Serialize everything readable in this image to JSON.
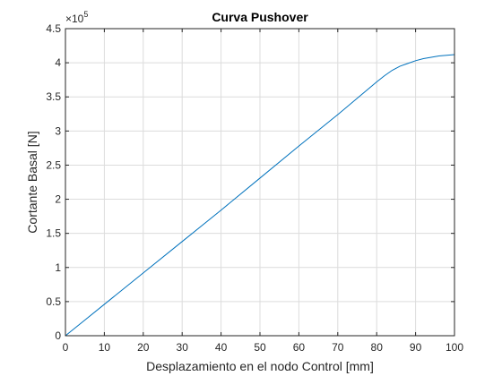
{
  "chart_data": {
    "type": "line",
    "title": "Curva Pushover",
    "xlabel": "Desplazamiento en el nodo Control [mm]",
    "ylabel": "Cortante Basal [N]",
    "xlim": [
      0,
      100
    ],
    "ylim": [
      0,
      4.5
    ],
    "y_scale_factor": "×10",
    "y_scale_exponent": "5",
    "x_ticks": [
      "0",
      "10",
      "20",
      "30",
      "40",
      "50",
      "60",
      "70",
      "80",
      "90",
      "100"
    ],
    "y_ticks": [
      "0",
      "0.5",
      "1",
      "1.5",
      "2",
      "2.5",
      "3",
      "3.5",
      "4",
      "4.5"
    ],
    "grid": true,
    "colors": {
      "line": "#0072BD",
      "grid": "#dcdcdc",
      "axis": "#262626"
    },
    "series": [
      {
        "x": [
          0,
          5,
          10,
          20,
          30,
          40,
          50,
          60,
          70,
          75,
          80,
          82,
          84,
          86,
          88,
          90,
          92,
          94,
          96,
          98,
          100
        ],
        "values": [
          0,
          0.23,
          0.46,
          0.92,
          1.38,
          1.84,
          2.31,
          2.78,
          3.24,
          3.48,
          3.72,
          3.81,
          3.89,
          3.95,
          3.99,
          4.03,
          4.06,
          4.08,
          4.1,
          4.11,
          4.12
        ]
      }
    ]
  }
}
